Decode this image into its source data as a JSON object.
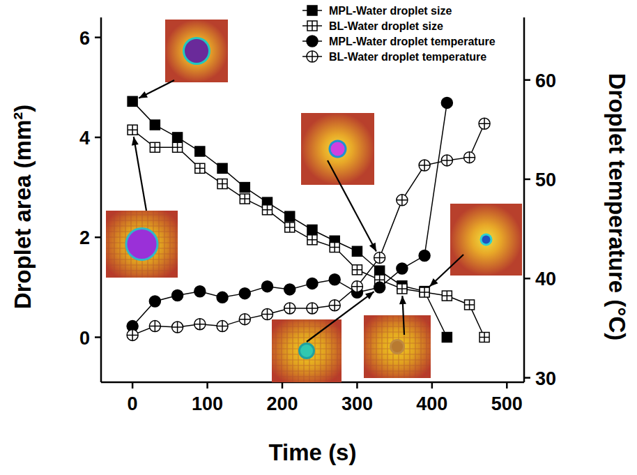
{
  "chart_data": {
    "type": "line",
    "x_label": "Time (s)",
    "y_label": "Droplet area (mm²)",
    "y2_label": "Droplet temperature (°C)",
    "xlim": [
      -42,
      523
    ],
    "xticks": [
      0,
      100,
      200,
      300,
      400,
      500
    ],
    "ylim": [
      -0.9,
      6.4
    ],
    "yticks": [
      0,
      2,
      4,
      6
    ],
    "y2lim": [
      29.55,
      66.3
    ],
    "y2ticks": [
      30,
      40,
      50,
      60
    ],
    "legend": "upper right",
    "series": [
      {
        "name": "MPL-Water droplet size",
        "color": "#000000",
        "marker": "square",
        "line_style": "solid",
        "axis": "y",
        "x": [
          0,
          30,
          60,
          90,
          120,
          150,
          180,
          210,
          240,
          270,
          300,
          330,
          360,
          390,
          420
        ],
        "values": [
          4.72,
          4.25,
          4.0,
          3.72,
          3.38,
          3.0,
          2.7,
          2.42,
          2.15,
          1.93,
          1.72,
          1.33,
          1.03,
          0.92,
          0
        ]
      },
      {
        "name": "BL-Water droplet size",
        "color": "#000000",
        "marker": "square-cross",
        "line_style": "solid",
        "axis": "y",
        "x": [
          0,
          30,
          60,
          90,
          120,
          150,
          180,
          210,
          240,
          270,
          300,
          330,
          360,
          390,
          420,
          450,
          470
        ],
        "values": [
          4.15,
          3.8,
          3.8,
          3.38,
          3.07,
          2.77,
          2.55,
          2.2,
          1.95,
          1.8,
          1.35,
          1.15,
          0.97,
          0.9,
          0.83,
          0.65,
          0
        ]
      },
      {
        "name": "MPL-Water droplet temperature",
        "color": "#000000",
        "marker": "circle",
        "line_style": "solid",
        "axis": "y2",
        "x": [
          0,
          30,
          60,
          90,
          120,
          150,
          180,
          210,
          240,
          270,
          300,
          330,
          360,
          390,
          420
        ],
        "values": [
          35.2,
          37.7,
          38.3,
          38.7,
          38.1,
          38.5,
          39.2,
          38.9,
          39.5,
          39.9,
          38.6,
          39.1,
          41.0,
          42.3,
          57.7
        ]
      },
      {
        "name": "BL-Water droplet temperature",
        "color": "#000000",
        "marker": "circle-cross",
        "line_style": "solid",
        "axis": "y2",
        "x": [
          0,
          30,
          60,
          90,
          120,
          150,
          180,
          210,
          240,
          270,
          300,
          330,
          360,
          390,
          420,
          450,
          470
        ],
        "values": [
          34.3,
          35.2,
          35.1,
          35.4,
          35.2,
          35.9,
          36.4,
          37.0,
          37.0,
          37.3,
          39.2,
          42.1,
          47.9,
          51.4,
          51.9,
          52.2,
          55.6
        ]
      }
    ]
  }
}
